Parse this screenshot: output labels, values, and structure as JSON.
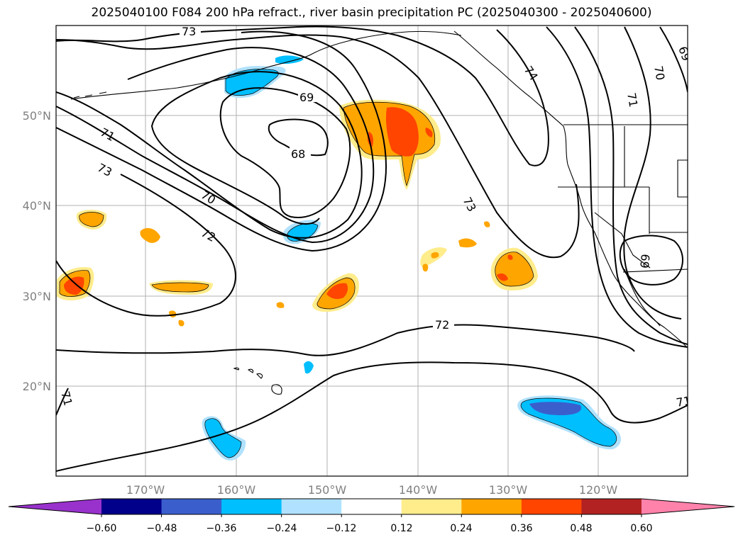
{
  "title": "2025040100 F084 200 hPa refract., river basin precipitation PC (2025040300 - 2025040600)",
  "map": {
    "lat_ticks": [
      "50°N",
      "40°N",
      "30°N",
      "20°N"
    ],
    "lon_ticks": [
      "170°W",
      "160°W",
      "150°W",
      "140°W",
      "130°W",
      "120°W"
    ],
    "contour_labels": [
      "73",
      "69",
      "68",
      "71",
      "73",
      "70",
      "72",
      "73",
      "72",
      "74",
      "71",
      "70",
      "69",
      "69",
      "71",
      "71"
    ]
  },
  "colorbar": {
    "ticks": [
      "−0.60",
      "−0.48",
      "−0.36",
      "−0.24",
      "−0.12",
      "0.12",
      "0.24",
      "0.36",
      "0.48",
      "0.60"
    ],
    "colors": [
      "#9932cc",
      "#00008b",
      "#3a5fcd",
      "#00bfff",
      "#b0e2ff",
      "#ffffff",
      "#ffec8b",
      "#ffa500",
      "#ff4500",
      "#b22222",
      "#ff82ab"
    ]
  },
  "colors": {
    "blue_strong": "#3a5fcd",
    "blue": "#00bfff",
    "blue_light": "#b0e2ff",
    "yellow": "#ffec8b",
    "orange": "#ffa500",
    "red": "#ff4500"
  }
}
